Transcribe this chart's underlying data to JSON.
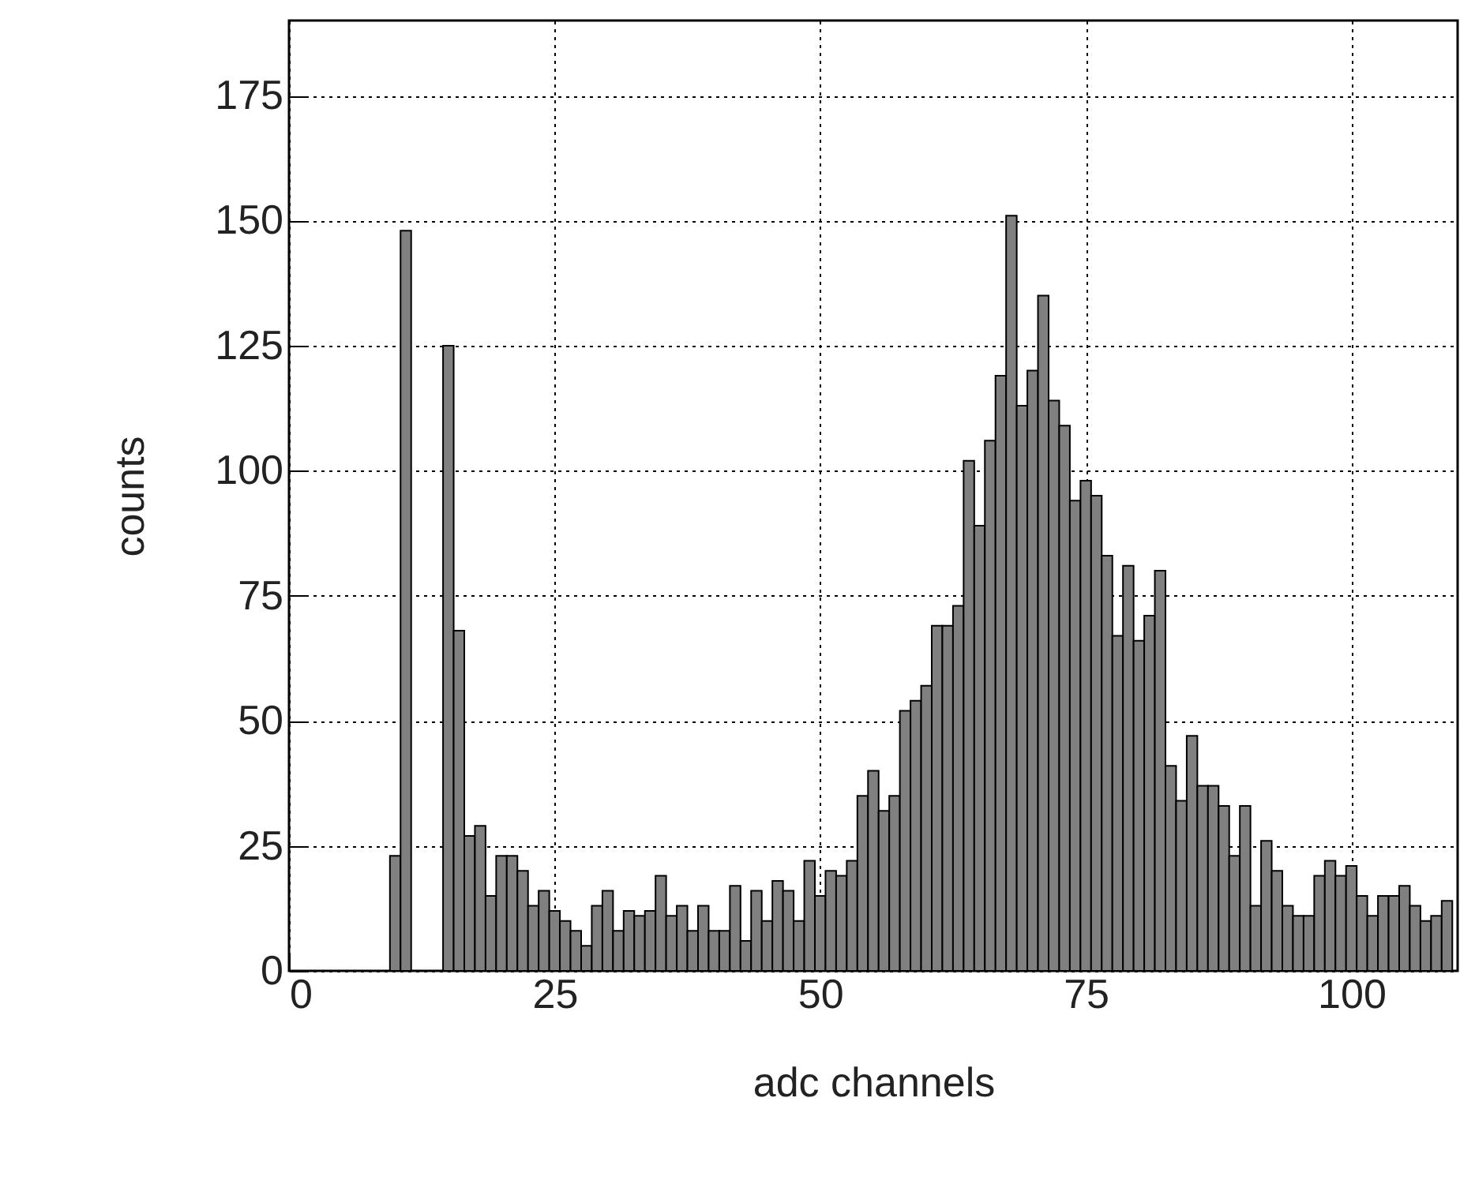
{
  "chart_data": {
    "type": "histogram",
    "xlabel": "adc channels",
    "ylabel": "counts",
    "bins": [
      9.5,
      10.5,
      11.5,
      12.5,
      13.5,
      14.5,
      15.5,
      16.5,
      17.5,
      18.5,
      19.5,
      20.5,
      21.5,
      22.5,
      23.5,
      24.5,
      25.5,
      26.5,
      27.5,
      28.5,
      29.5,
      30.5,
      31.5,
      32.5,
      33.5,
      34.5,
      35.5,
      36.5,
      37.5,
      38.5,
      39.5,
      40.5,
      41.5,
      42.5,
      43.5,
      44.5,
      45.5,
      46.5,
      47.5,
      48.5,
      49.5,
      50.5,
      51.5,
      52.5,
      53.5,
      54.5,
      55.5,
      56.5,
      57.5,
      58.5,
      59.5,
      60.5,
      61.5,
      62.5,
      63.5,
      64.5,
      65.5,
      66.5,
      67.5,
      68.5,
      69.5,
      70.5,
      71.5,
      72.5,
      73.5,
      74.5,
      75.5,
      76.5,
      77.5,
      78.5,
      79.5,
      80.5,
      81.5,
      82.5,
      83.5,
      84.5,
      85.5,
      86.5,
      87.5,
      88.5,
      89.5,
      90.5,
      91.5,
      92.5,
      93.5,
      94.5,
      95.5,
      96.5,
      97.5,
      98.5,
      99.5,
      100.5,
      101.5,
      102.5,
      103.5,
      104.5,
      105.5,
      106.5,
      107.5,
      108.5,
      109.5
    ],
    "values": [
      23,
      148,
      null,
      null,
      null,
      125,
      68,
      27,
      29,
      15,
      23,
      23,
      20,
      13,
      16,
      12,
      10,
      8,
      5,
      13,
      16,
      8,
      12,
      11,
      12,
      19,
      11,
      13,
      8,
      13,
      8,
      8,
      17,
      6,
      16,
      10,
      18,
      16,
      10,
      22,
      15,
      20,
      19,
      22,
      35,
      40,
      32,
      35,
      52,
      54,
      57,
      69,
      69,
      73,
      102,
      89,
      106,
      119,
      151,
      113,
      120,
      135,
      114,
      109,
      94,
      98,
      95,
      83,
      67,
      81,
      66,
      71,
      80,
      41,
      34,
      47,
      37,
      37,
      33,
      23,
      33,
      13,
      26,
      20,
      13,
      11,
      11,
      19,
      22,
      19,
      21,
      15,
      11,
      15,
      15,
      17,
      13,
      10,
      11,
      14
    ],
    "color": "#808080",
    "xlim": [
      0,
      110
    ],
    "ylim": [
      0,
      190
    ],
    "xticks": [
      0,
      25,
      50,
      75,
      100
    ],
    "yticks": [
      0,
      25,
      50,
      75,
      100,
      125,
      150,
      175
    ],
    "grid": true
  }
}
